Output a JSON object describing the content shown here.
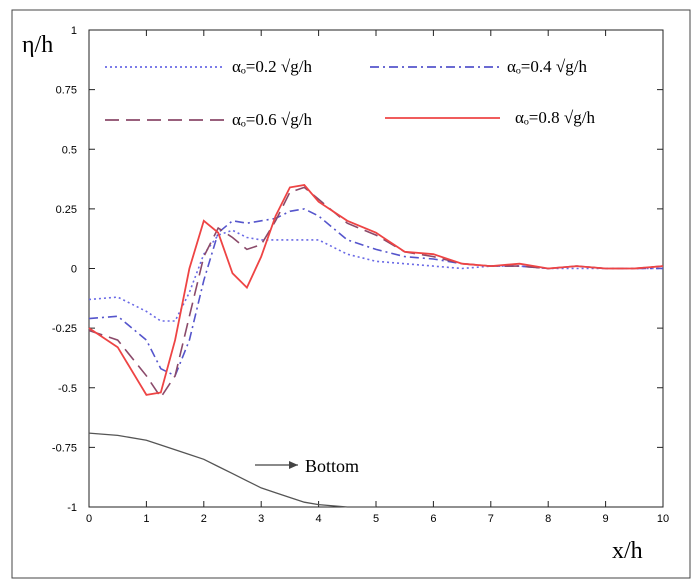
{
  "chart_data": {
    "type": "line",
    "ylabel": "η/h",
    "xlabel": "x/h",
    "annotation": "Bottom",
    "x": [
      0,
      0.5,
      1,
      1.25,
      1.5,
      1.75,
      2,
      2.25,
      2.5,
      2.75,
      3,
      3.25,
      3.5,
      3.75,
      4,
      4.5,
      5,
      5.5,
      6,
      6.5,
      7,
      7.5,
      8,
      8.5,
      9,
      9.5,
      10
    ],
    "series": [
      {
        "name": "αₒ=0.2 √g/h",
        "color": "#6a6ae6",
        "dash": "dotted",
        "values": [
          -0.13,
          -0.12,
          -0.18,
          -0.22,
          -0.22,
          -0.1,
          0.06,
          0.14,
          0.16,
          0.13,
          0.12,
          0.12,
          0.12,
          0.12,
          0.12,
          0.06,
          0.03,
          0.02,
          0.01,
          0.0,
          0.01,
          0.01,
          0.0,
          0.0,
          0.0,
          0.0,
          0.0
        ]
      },
      {
        "name": "αₒ=0.4 √g/h",
        "color": "#5555cc",
        "dash": "dashdot",
        "values": [
          -0.21,
          -0.2,
          -0.3,
          -0.42,
          -0.45,
          -0.3,
          -0.05,
          0.15,
          0.2,
          0.19,
          0.2,
          0.21,
          0.24,
          0.25,
          0.22,
          0.12,
          0.08,
          0.05,
          0.04,
          0.02,
          0.01,
          0.01,
          0.0,
          0.01,
          0.0,
          0.0,
          0.0
        ]
      },
      {
        "name": "αₒ=0.6 √g/h",
        "color": "#8b4a6a",
        "dash": "dashed",
        "values": [
          -0.26,
          -0.3,
          -0.45,
          -0.54,
          -0.45,
          -0.2,
          0.05,
          0.17,
          0.13,
          0.08,
          0.1,
          0.2,
          0.32,
          0.34,
          0.29,
          0.19,
          0.14,
          0.07,
          0.05,
          0.02,
          0.01,
          0.01,
          0.0,
          0.01,
          0.0,
          0.0,
          0.01
        ]
      },
      {
        "name": "αₒ=0.8 √g/h",
        "color": "#ee4444",
        "dash": "solid",
        "values": [
          -0.25,
          -0.33,
          -0.53,
          -0.52,
          -0.3,
          0.0,
          0.2,
          0.15,
          -0.02,
          -0.08,
          0.05,
          0.22,
          0.34,
          0.35,
          0.28,
          0.2,
          0.15,
          0.07,
          0.06,
          0.02,
          0.01,
          0.02,
          0.0,
          0.01,
          0.0,
          0.0,
          0.01
        ]
      }
    ],
    "bottom": {
      "color": "#555555",
      "values": [
        -0.69,
        -0.7,
        -0.72,
        -0.74,
        -0.76,
        -0.78,
        -0.8,
        -0.83,
        -0.86,
        -0.89,
        -0.92,
        -0.94,
        -0.96,
        -0.98,
        -0.99,
        -1.0,
        -1.0,
        null,
        null,
        null,
        null,
        null,
        null,
        null,
        null,
        null,
        null
      ]
    },
    "xlim": [
      0,
      10
    ],
    "xticks": [
      0,
      1,
      2,
      3,
      4,
      5,
      6,
      7,
      8,
      9,
      10
    ],
    "ylim": [
      -1,
      1
    ],
    "yticks": [
      -1,
      -0.75,
      -0.5,
      -0.25,
      0,
      0.25,
      0.5,
      0.75,
      1
    ]
  }
}
